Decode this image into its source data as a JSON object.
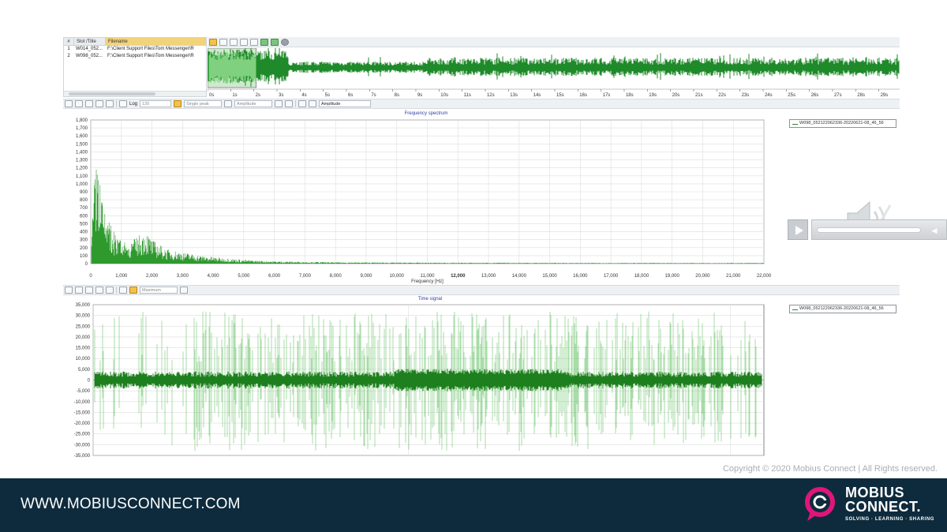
{
  "file_list": {
    "headers": [
      "#",
      "Slot /Title",
      "Filename"
    ],
    "rows": [
      {
        "index": "1",
        "slot": "W014_052...",
        "filename": "F:\\Client Support Files\\Tom Messenger\\R"
      },
      {
        "index": "2",
        "slot": "W098_052...",
        "filename": "F:\\Client Support Files\\Tom Messenger\\R"
      }
    ]
  },
  "overview": {
    "ticks": [
      "0s",
      "1s",
      "2s",
      "3s",
      "4s",
      "5s",
      "6s",
      "7s",
      "8s",
      "9s",
      "10s",
      "11s",
      "12s",
      "13s",
      "14s",
      "15s",
      "16s",
      "17s",
      "18s",
      "19s",
      "20s",
      "21s",
      "22s",
      "23s",
      "24s",
      "25s",
      "26s",
      "27s",
      "28s",
      "29s"
    ],
    "selection_range_s": [
      0,
      2.1
    ],
    "wave_color": "#1f8a2a",
    "selection_color": "#7fd07f"
  },
  "spectrum_toolbar": {
    "log_label": "Log",
    "resolution_value": "120",
    "peak_mode": "Single peak",
    "quantity_1": "Amplitude",
    "quantity_2": "Amplitude"
  },
  "spectrum": {
    "chart_data": {
      "type": "line",
      "title": "Frequency spectrum",
      "xlabel": "Frequency [Hz]",
      "ylabel": "",
      "xlim": [
        0,
        22000
      ],
      "ylim": [
        0,
        1800
      ],
      "x_ticks": [
        "0",
        "1,000",
        "2,000",
        "3,000",
        "4,000",
        "5,000",
        "6,000",
        "7,000",
        "8,000",
        "9,000",
        "10,000",
        "11,000",
        "12,000",
        "13,000",
        "14,000",
        "15,000",
        "16,000",
        "17,000",
        "18,000",
        "19,000",
        "20,000",
        "21,000",
        "22,000"
      ],
      "y_ticks": [
        "0",
        "100",
        "200",
        "300",
        "400",
        "500",
        "600",
        "700",
        "800",
        "900",
        "1,000",
        "1,100",
        "1,200",
        "1,300",
        "1,400",
        "1,500",
        "1,600",
        "1,700",
        "1,800"
      ],
      "grid": true,
      "legend": "top-right",
      "series": [
        {
          "name": "W098_052122062336-20220621-08_46_56",
          "x": [
            0,
            100,
            200,
            300,
            400,
            500,
            600,
            800,
            1000,
            1200,
            1500,
            1800,
            2000,
            2500,
            3000,
            3500,
            4000,
            5000,
            6000,
            7000,
            8000,
            10000,
            12000,
            14000,
            16000,
            18000,
            20000,
            22000
          ],
          "y": [
            100,
            750,
            1220,
            900,
            600,
            500,
            450,
            300,
            250,
            200,
            280,
            350,
            250,
            150,
            120,
            90,
            70,
            40,
            25,
            20,
            15,
            12,
            10,
            10,
            8,
            8,
            8,
            8
          ]
        }
      ]
    },
    "legend_label": "W098_052122062336-20220621-08_46_56"
  },
  "time_toolbar": {
    "mode": "Maximum"
  },
  "time_signal": {
    "chart_data": {
      "type": "line",
      "title": "Time signal",
      "xlabel": "",
      "ylabel": "",
      "ylim": [
        -35000,
        35000
      ],
      "y_ticks": [
        "35,000",
        "30,000",
        "25,000",
        "20,000",
        "15,000",
        "10,000",
        "5,000",
        "0",
        "-5,000",
        "-10,000",
        "-15,000",
        "-20,000",
        "-25,000",
        "-30,000",
        "-35,000"
      ],
      "grid": true,
      "legend": "top-right",
      "series": [
        {
          "name": "W098_052122062336-20220621-08_46_56"
        }
      ]
    },
    "legend_label": "W098_052122062336-20220621-08_46_56"
  },
  "copyright": "Copyright © 2020 Mobius Connect | All Rights reserved.",
  "footer": {
    "url": "WWW.MOBIUSCONNECT.COM",
    "logo_line1": "MOBIUS",
    "logo_line2": "CONNECT.",
    "tagline": "SOLVING · LEARNING · SHARING",
    "bg_color": "#0e2b3d",
    "accent_color": "#e0157a"
  }
}
